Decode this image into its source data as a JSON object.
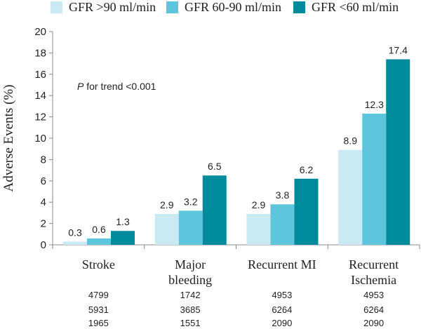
{
  "chart_data": {
    "type": "bar",
    "ylabel": "Adverse Events (%)",
    "ylim": [
      0,
      20
    ],
    "y_ticks": [
      0,
      2,
      4,
      6,
      8,
      10,
      12,
      14,
      16,
      18,
      20
    ],
    "annotation": {
      "italic": "P",
      "text": " for trend <0.001"
    },
    "categories": [
      {
        "line1": "Stroke",
        "line2": ""
      },
      {
        "line1": "Major",
        "line2": "bleeding"
      },
      {
        "line1": "Recurrent MI",
        "line2": ""
      },
      {
        "line1": "Recurrent",
        "line2": "Ischemia"
      }
    ],
    "series": [
      {
        "name": "GFR >90 ml/min",
        "color": "#c9e9f3",
        "values": [
          0.3,
          2.9,
          2.9,
          8.9
        ],
        "labels": [
          "0.3",
          "2.9",
          "2.9",
          "8.9"
        ]
      },
      {
        "name": "GFR 60-90 ml/min",
        "color": "#5ec6dc",
        "values": [
          0.6,
          3.2,
          3.8,
          12.3
        ],
        "labels": [
          "0.6",
          "3.2",
          "3.8",
          "12.3"
        ]
      },
      {
        "name": "GFR <60 ml/min",
        "color": "#008b9c",
        "values": [
          1.3,
          6.5,
          6.2,
          17.4
        ],
        "labels": [
          "1.3",
          "6.5",
          "6.2",
          "17.4"
        ]
      }
    ],
    "legend_position": "top",
    "grid": false,
    "n_rows": [
      [
        "4799",
        "1742",
        "4953",
        "4953"
      ],
      [
        "5931",
        "3685",
        "6264",
        "6264"
      ],
      [
        "1965",
        "1551",
        "2090",
        "2090"
      ]
    ]
  }
}
